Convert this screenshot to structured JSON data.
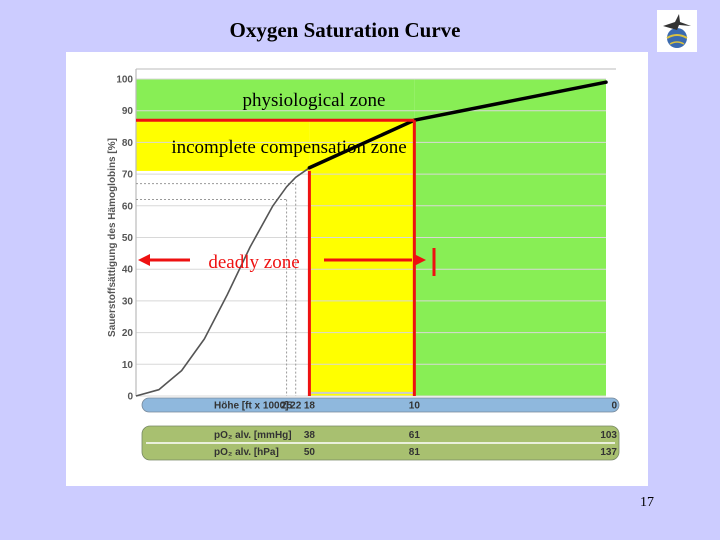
{
  "slide": {
    "title": "Oxygen Saturation Curve",
    "page_number": "17"
  },
  "colors": {
    "background": "#ccccff",
    "physiological_zone": "#88ee55",
    "incomplete_zone": "#ffff00",
    "marker": "#ee1111",
    "curve": "#555555",
    "hoehe_band": "#8fb8dd",
    "po2_band": "#a8c070"
  },
  "logo": {
    "icon": "bird-on-globe-emblem-icon"
  },
  "chart_data": {
    "type": "line",
    "title": "",
    "ylabel": "Sauerstoffsättigung des Hämoglobins [%]",
    "ylim": [
      0,
      100
    ],
    "yticks": [
      "0",
      "10",
      "20",
      "30",
      "40",
      "50",
      "60",
      "70",
      "80",
      "90",
      "100"
    ],
    "grid": true,
    "curve": {
      "po2_mmHg": [
        0,
        5,
        10,
        15,
        20,
        25,
        30,
        33,
        35,
        38
      ],
      "saturation": [
        0,
        2,
        8,
        18,
        32,
        47,
        60,
        66,
        69,
        72
      ]
    },
    "upper_segments": [
      {
        "from": {
          "po2_mmHg": 38,
          "saturation": 72
        },
        "to": {
          "po2_mmHg": 61,
          "saturation": 87
        }
      },
      {
        "from": {
          "po2_mmHg": 61,
          "saturation": 87
        },
        "to": {
          "po2_mmHg": 103,
          "saturation": 99
        }
      }
    ],
    "reference_lines": [
      {
        "po2_mmHg": 33,
        "saturation": 62
      },
      {
        "po2_mmHg": 35,
        "saturation": 67
      }
    ],
    "zones": [
      {
        "label": "physiological zone",
        "po2_mmHg_from": 61,
        "po2_mmHg_to": 103,
        "saturation_from": 87,
        "saturation_to": 100
      },
      {
        "label": "incomplete compensation zone",
        "po2_mmHg_from": 38,
        "po2_mmHg_to": 61,
        "saturation_from": 71,
        "saturation_to": 87
      },
      {
        "label": "deadly zone",
        "po2_mmHg_from": 0,
        "po2_mmHg_to": 38
      }
    ],
    "scales": [
      {
        "label": "Höhe [ft x 1000]",
        "ticks": [
          {
            "label": "25",
            "po2_mmHg": 33
          },
          {
            "label": "22",
            "po2_mmHg": 35
          },
          {
            "label": "18",
            "po2_mmHg": 38
          },
          {
            "label": "10",
            "po2_mmHg": 61
          },
          {
            "label": "0",
            "po2_mmHg": 103
          }
        ]
      },
      {
        "label": "pO₂ alv. [mmHg]",
        "ticks": [
          {
            "label": "38",
            "po2_mmHg": 38
          },
          {
            "label": "61",
            "po2_mmHg": 61
          },
          {
            "label": "103",
            "po2_mmHg": 103
          }
        ]
      },
      {
        "label": "pO₂ alv. [hPa]",
        "ticks": [
          {
            "label": "50",
            "po2_mmHg": 38
          },
          {
            "label": "81",
            "po2_mmHg": 61
          },
          {
            "label": "137",
            "po2_mmHg": 103
          }
        ]
      }
    ]
  }
}
